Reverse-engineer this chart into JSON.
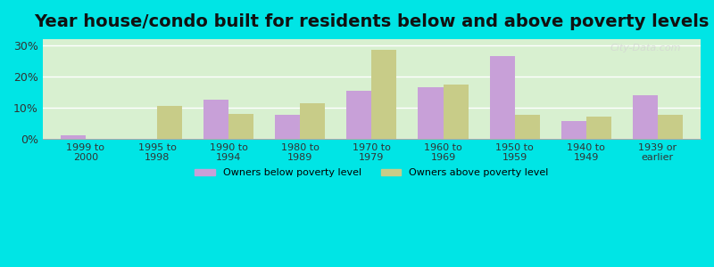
{
  "title": "Year house/condo built for residents below and above poverty levels",
  "categories": [
    "1999 to\n2000",
    "1995 to\n1998",
    "1990 to\n1994",
    "1980 to\n1989",
    "1970 to\n1979",
    "1960 to\n1969",
    "1950 to\n1959",
    "1940 to\n1949",
    "1939 or\nearlier"
  ],
  "below_poverty": [
    1.0,
    0.0,
    12.5,
    7.5,
    15.5,
    16.5,
    26.5,
    5.5,
    14.0
  ],
  "above_poverty": [
    0.0,
    10.5,
    8.0,
    11.5,
    28.5,
    17.5,
    7.5,
    7.0,
    7.5
  ],
  "below_color": "#c8a0d8",
  "above_color": "#c8cc88",
  "bg_color_left": "#d8f0d0",
  "bg_color_right": "#f5f5e8",
  "outer_bg": "#00e5e5",
  "ylabel_ticks": [
    "0%",
    "10%",
    "20%",
    "30%"
  ],
  "yticks": [
    0,
    10,
    20,
    30
  ],
  "ylim": [
    0,
    32
  ],
  "title_fontsize": 14,
  "legend_below_label": "Owners below poverty level",
  "legend_above_label": "Owners above poverty level",
  "watermark": "City-Data.com"
}
